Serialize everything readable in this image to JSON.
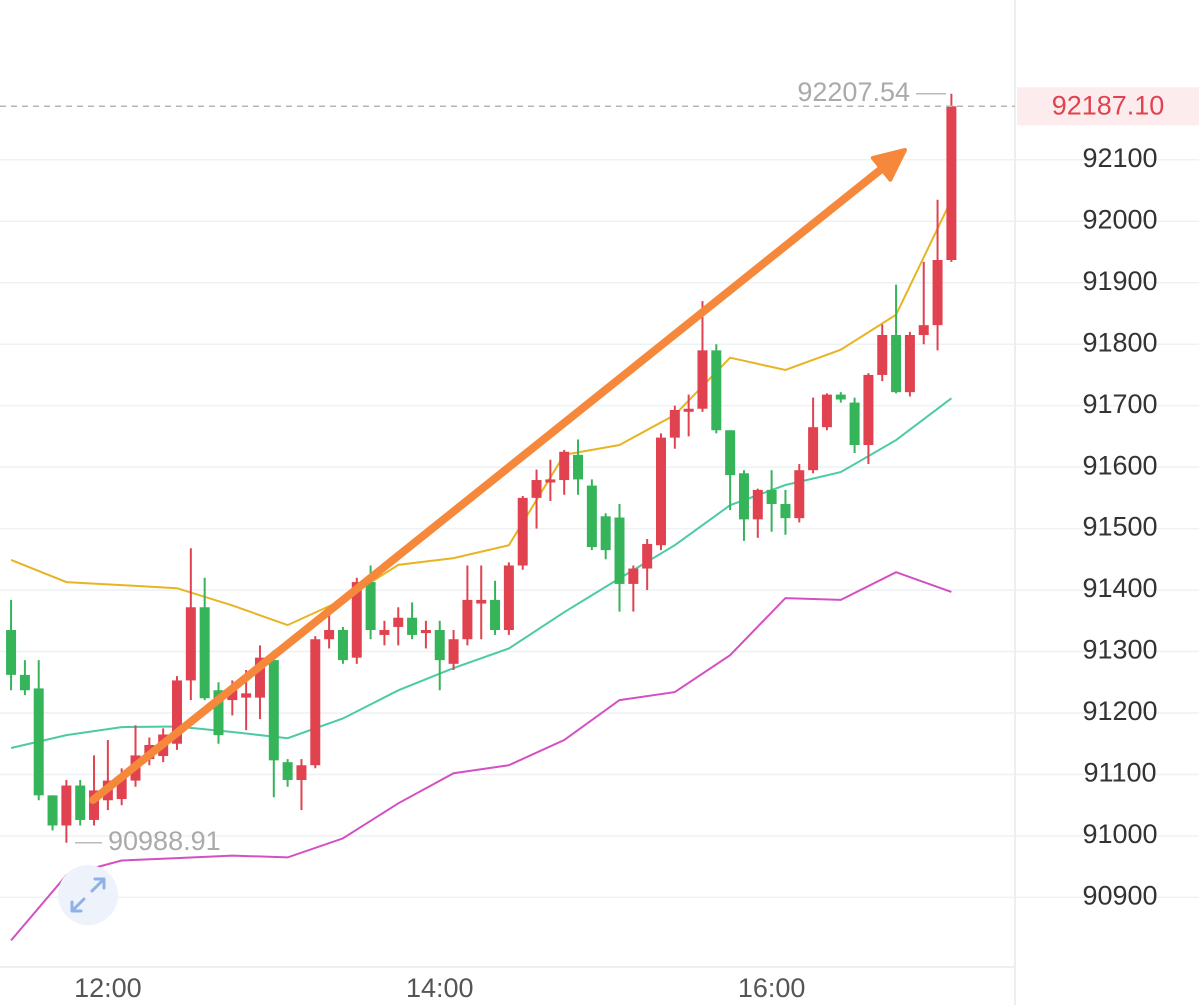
{
  "chart_data": {
    "type": "candlestick",
    "x": [
      "11:25",
      "11:30",
      "11:35",
      "11:40",
      "11:45",
      "11:50",
      "11:55",
      "12:00",
      "12:05",
      "12:10",
      "12:15",
      "12:20",
      "12:25",
      "12:30",
      "12:35",
      "12:40",
      "12:45",
      "12:50",
      "12:55",
      "13:00",
      "13:05",
      "13:10",
      "13:15",
      "13:20",
      "13:25",
      "13:30",
      "13:35",
      "13:40",
      "13:45",
      "13:50",
      "13:55",
      "14:00",
      "14:05",
      "14:10",
      "14:15",
      "14:20",
      "14:25",
      "14:30",
      "14:35",
      "14:40",
      "14:45",
      "14:50",
      "14:55",
      "15:00",
      "15:05",
      "15:10",
      "15:15",
      "15:20",
      "15:25",
      "15:30",
      "15:35",
      "15:40",
      "15:45",
      "15:50",
      "15:55",
      "16:00",
      "16:05",
      "16:10",
      "16:15",
      "16:20",
      "16:25",
      "16:30",
      "16:35",
      "16:40",
      "16:45",
      "16:50",
      "16:55",
      "17:00",
      "17:05"
    ],
    "open": [
      91335,
      91262,
      91240,
      91066,
      91017,
      91082,
      91026,
      91058,
      91060,
      91090,
      91125,
      91130,
      91150,
      91253,
      91372,
      91237,
      91221,
      91225,
      91225,
      91286,
      91120,
      91091,
      91115,
      91320,
      91335,
      91290,
      91413,
      91327,
      91340,
      91355,
      91330,
      91335,
      91280,
      91320,
      91378,
      91384,
      91335,
      91440,
      91550,
      91575,
      91579,
      91620,
      91570,
      91520,
      91518,
      91410,
      91435,
      91473,
      91648,
      91690,
      91695,
      91790,
      91660,
      91590,
      91515,
      91563,
      91540,
      91517,
      91595,
      91665,
      91718,
      91705,
      91636,
      91750,
      91815,
      91722,
      91815,
      91831,
      91937
    ],
    "high": [
      91384,
      91286,
      91286,
      91066,
      91091,
      91091,
      91131,
      91156,
      91110,
      91180,
      91160,
      91175,
      91260,
      91468,
      91420,
      91250,
      91253,
      91270,
      91310,
      91302,
      91125,
      91125,
      91325,
      91366,
      91340,
      91420,
      91440,
      91350,
      91372,
      91380,
      91350,
      91350,
      91335,
      91440,
      91440,
      91415,
      91445,
      91553,
      91596,
      91612,
      91628,
      91645,
      91580,
      91525,
      91540,
      91440,
      91483,
      91655,
      91700,
      91718,
      91870,
      91800,
      91660,
      91595,
      91565,
      91595,
      91563,
      91605,
      91713,
      91720,
      91722,
      91713,
      91753,
      91832,
      91897,
      91820,
      91934,
      92035,
      92207.54
    ],
    "low": [
      91237,
      91229,
      91058,
      91009,
      90988.91,
      91017,
      91017,
      91042,
      91050,
      91080,
      91115,
      91120,
      91140,
      91221,
      91221,
      91150,
      91196,
      91172,
      91190,
      91063,
      91080,
      91042,
      91110,
      91305,
      91280,
      91280,
      91320,
      91310,
      91310,
      91320,
      91305,
      91237,
      91270,
      91310,
      91320,
      91327,
      91327,
      91433,
      91500,
      91545,
      91555,
      91555,
      91465,
      91450,
      91365,
      91365,
      91400,
      91465,
      91630,
      91650,
      91690,
      91655,
      91530,
      91480,
      91485,
      91495,
      91490,
      91510,
      91590,
      91660,
      91705,
      91623,
      91605,
      91740,
      91720,
      91715,
      91800,
      91790,
      91934
    ],
    "close": [
      91262,
      91237,
      91066,
      91017,
      91082,
      91026,
      91074,
      91090,
      91095,
      91131,
      91148,
      91165,
      91253,
      91372,
      91224,
      91164,
      91237,
      91232,
      91290,
      91123,
      91091,
      91115,
      91320,
      91335,
      91286,
      91413,
      91335,
      91335,
      91355,
      91327,
      91335,
      91286,
      91320,
      91384,
      91384,
      91335,
      91440,
      91550,
      91579,
      91580,
      91625,
      91580,
      91470,
      91465,
      91410,
      91435,
      91475,
      91648,
      91693,
      91695,
      91790,
      91660,
      91587,
      91515,
      91563,
      91540,
      91517,
      91595,
      91665,
      91718,
      91710,
      91636,
      91750,
      91815,
      91722,
      91815,
      91831,
      91937,
      92187.1
    ],
    "up_color": "#e0434f",
    "down_color": "#36b45a",
    "series": [
      {
        "color": "#e8b422",
        "x": [
          "11:25",
          "11:45",
          "12:05",
          "12:25",
          "12:45",
          "13:05",
          "13:25",
          "13:45",
          "14:05",
          "14:25",
          "14:45",
          "15:05",
          "15:25",
          "15:45",
          "16:05",
          "16:25",
          "16:45",
          "17:05"
        ],
        "values": [
          91449,
          91413,
          91408,
          91403,
          91375,
          91343,
          91384,
          91441,
          91452,
          91473,
          91620,
          91636,
          91685,
          91778,
          91758,
          91791,
          91848,
          92035
        ]
      },
      {
        "color": "#4ccaa6",
        "x": [
          "11:25",
          "11:45",
          "12:05",
          "12:25",
          "12:45",
          "13:05",
          "13:25",
          "13:45",
          "14:05",
          "14:25",
          "14:45",
          "15:05",
          "15:25",
          "15:45",
          "16:05",
          "16:25",
          "16:45",
          "17:05"
        ],
        "values": [
          91143,
          91164,
          91177,
          91178,
          91169,
          91159,
          91191,
          91237,
          91273,
          91305,
          91364,
          91419,
          91473,
          91538,
          91571,
          91592,
          91644,
          91712
        ]
      },
      {
        "color": "#d44fc2",
        "x": [
          "11:25",
          "11:45",
          "12:05",
          "12:25",
          "12:45",
          "13:05",
          "13:25",
          "13:45",
          "14:05",
          "14:25",
          "14:45",
          "15:05",
          "15:25",
          "15:45",
          "16:05",
          "16:25",
          "16:45",
          "17:05"
        ],
        "values": [
          90830,
          90936,
          90960,
          90964,
          90968,
          90965,
          90996,
          91053,
          91102,
          91115,
          91156,
          91221,
          91234,
          91294,
          91387,
          91384,
          91429,
          91397
        ]
      }
    ],
    "xlim": [
      "11:21",
      "17:28"
    ],
    "xticks": [
      "12:00",
      "14:00",
      "16:00"
    ],
    "ylim": [
      90790,
      92360
    ],
    "yticks": [
      90900,
      91000,
      91100,
      91200,
      91300,
      91400,
      91500,
      91600,
      91700,
      91800,
      91900,
      92000,
      92100
    ],
    "grid": true,
    "last": {
      "value": 92187.1,
      "label": "92187.10"
    },
    "extremes": {
      "max": 92207.54,
      "min": 90988.91
    }
  }
}
